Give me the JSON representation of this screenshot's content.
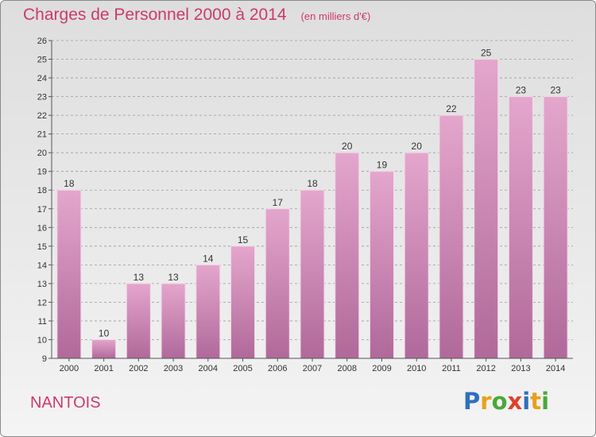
{
  "title": "Charges de Personnel 2000 à 2014",
  "subtitle": "(en milliers d'€)",
  "commune": "NANTOIS",
  "logo": {
    "text": "Proxiti",
    "letters": [
      {
        "char": "P",
        "color": "#2f6fc0"
      },
      {
        "char": "r",
        "color": "#e8a11c"
      },
      {
        "char": "o",
        "color": "#4aa83a"
      },
      {
        "char": "x",
        "color": "#e0402a"
      },
      {
        "char": "i",
        "color": "#2f6fc0"
      },
      {
        "char": "t",
        "color": "#e8a11c"
      },
      {
        "char": "i",
        "color": "#4aa83a"
      }
    ]
  },
  "colors": {
    "accent": "#cc3a6c",
    "bar_top": "#e4a6cc",
    "bar_bottom": "#b0699a",
    "grid": "#9a9a9a",
    "axis_text": "#333333"
  },
  "chart_data": {
    "type": "bar",
    "title": "Charges de Personnel 2000 à 2014",
    "subtitle": "(en milliers d'€)",
    "categories": [
      "2000",
      "2001",
      "2002",
      "2003",
      "2004",
      "2005",
      "2006",
      "2007",
      "2008",
      "2009",
      "2010",
      "2011",
      "2012",
      "2013",
      "2014"
    ],
    "values": [
      18,
      10,
      13,
      13,
      14,
      15,
      17,
      18,
      20,
      19,
      20,
      22,
      25,
      23,
      23
    ],
    "ylim": [
      9,
      26
    ],
    "yticks": [
      9,
      10,
      11,
      12,
      13,
      14,
      15,
      16,
      17,
      18,
      19,
      20,
      21,
      22,
      23,
      24,
      25,
      26
    ],
    "grid": true,
    "data_labels": true
  }
}
